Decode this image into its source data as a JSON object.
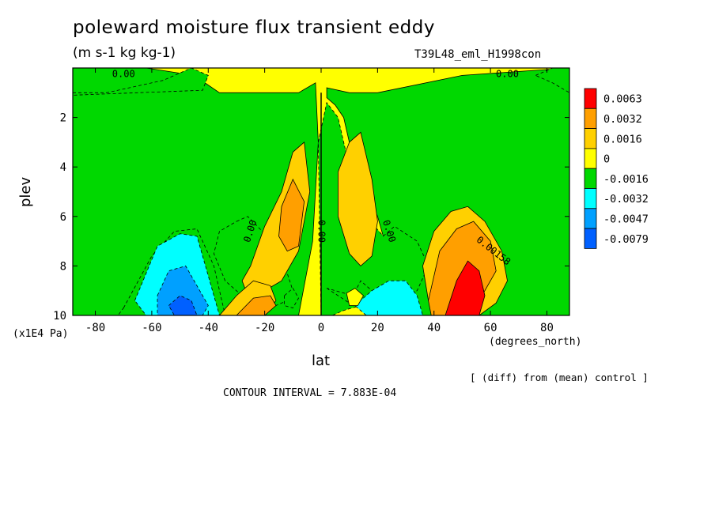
{
  "chart_data": {
    "type": "heatmap",
    "title": "poleward moisture flux transient eddy",
    "units_label": "(m s-1 kg kg-1)",
    "run_label": "T39L48_eml_H1998con",
    "xlabel": "lat",
    "x_unit": "(degrees_north)",
    "ylabel": "plev",
    "y_unit": "(x1E4 Pa)",
    "xlim": [
      -88,
      88
    ],
    "ylim": [
      10,
      0
    ],
    "x_ticks": [
      -80,
      -60,
      -40,
      -20,
      0,
      20,
      40,
      60,
      80
    ],
    "x_tick_labels": [
      "-80",
      "-60",
      "-40",
      "-20",
      "0",
      "20",
      "40",
      "60",
      "80"
    ],
    "y_ticks": [
      2,
      4,
      6,
      8,
      10
    ],
    "y_tick_labels": [
      "2",
      "4",
      "6",
      "8",
      "10"
    ],
    "legend": {
      "placement": "right",
      "bins": [
        {
          "label": "0.0063",
          "color": "#ff0000"
        },
        {
          "label": "0.0032",
          "color": "#ff9f00"
        },
        {
          "label": "0.0016",
          "color": "#ffd000"
        },
        {
          "label": "0",
          "color": "#ffff00"
        },
        {
          "label": "-0.0016",
          "color": "#00d800"
        },
        {
          "label": "-0.0032",
          "color": "#00ffff"
        },
        {
          "label": "-0.0047",
          "color": "#00a0ff"
        },
        {
          "label": "-0.0079",
          "color": "#0060ff"
        }
      ]
    },
    "contour_labels": [
      {
        "text": "0.00",
        "lat": -70,
        "plev": 0.0,
        "angle": 0
      },
      {
        "text": "0.00",
        "lat": 66,
        "plev": 0.0,
        "angle": 0
      },
      {
        "text": "0.00",
        "lat": -25,
        "plev": 6.6,
        "angle": -72
      },
      {
        "text": "0.00",
        "lat": 0,
        "plev": 6.6,
        "angle": 90
      },
      {
        "text": "0.00",
        "lat": 24,
        "plev": 6.6,
        "angle": 72
      },
      {
        "text": "0.00158",
        "lat": 61,
        "plev": 7.4,
        "angle": 38
      }
    ],
    "regions": [
      {
        "level": "0",
        "lat": [
          -88,
          -62,
          -45,
          -36,
          -25,
          -15,
          -8,
          -2,
          -1,
          -3,
          -8,
          -20,
          -40,
          -88
        ],
        "plev": [
          0.0,
          0.0,
          0.3,
          1.0,
          1.0,
          1.0,
          1.0,
          0.6,
          3.0,
          7.0,
          10,
          10,
          10,
          10
        ]
      },
      {
        "level": "0",
        "lat": [
          2,
          10,
          20,
          50,
          88,
          88,
          40,
          30,
          20,
          12,
          8,
          5,
          2
        ],
        "plev": [
          0.8,
          1.0,
          1.0,
          0.3,
          0.0,
          10,
          10,
          10,
          6,
          4,
          2,
          1.5,
          1.2
        ]
      },
      {
        "level": "-0.0016",
        "lat": [
          -88,
          -76,
          -56,
          -46,
          -40,
          -42,
          -88
        ],
        "plev": [
          1.0,
          1.0,
          0.5,
          0.0,
          0.3,
          0.9,
          1.1
        ]
      },
      {
        "level": "-0.0016",
        "lat": [
          -30,
          -26,
          -20,
          -16,
          -12,
          -10,
          -12,
          -16,
          -20,
          -24,
          -28,
          -34,
          -38,
          -36
        ],
        "plev": [
          6.2,
          6.0,
          6.7,
          7.6,
          8.3,
          9.0,
          9.4,
          9.6,
          9.6,
          9.5,
          9.2,
          8.6,
          7.5,
          6.6
        ]
      },
      {
        "level": "-0.0016",
        "lat": [
          -1,
          2,
          6,
          10,
          16,
          22,
          26,
          34,
          38,
          34,
          28,
          24,
          20,
          14,
          8,
          4,
          0
        ],
        "plev": [
          3.0,
          1.4,
          2.0,
          4.0,
          6.0,
          6.8,
          6.4,
          7.0,
          8.0,
          9.0,
          9.4,
          9.5,
          9.5,
          9.6,
          9.8,
          10,
          10
        ]
      },
      {
        "level": "-0.0016",
        "lat": [
          -70,
          -60,
          -52,
          -44,
          -38,
          -34,
          -38,
          -48,
          -62,
          -72
        ],
        "plev": [
          9.7,
          7.6,
          6.6,
          6.5,
          8.0,
          10,
          10,
          10,
          10,
          10
        ]
      },
      {
        "level": "-0.0016",
        "lat": [
          2,
          10,
          14,
          18,
          22,
          26,
          30,
          34,
          36,
          38,
          40,
          36
        ],
        "plev": [
          8.9,
          9.5,
          8.6,
          9.0,
          9.0,
          8.6,
          9.6,
          9.8,
          10,
          10,
          10,
          10
        ]
      },
      {
        "level": "-0.0016",
        "lat": [
          76,
          82,
          88,
          88,
          82
        ],
        "plev": [
          0.3,
          0.0,
          0.0,
          1.0,
          0.6
        ]
      },
      {
        "level": "-0.0032",
        "lat": [
          -66,
          -58,
          -50,
          -44,
          -40,
          -36,
          -38,
          -48,
          -62
        ],
        "plev": [
          9.4,
          7.2,
          6.7,
          6.8,
          8.4,
          10,
          10,
          10,
          10
        ]
      },
      {
        "level": "-0.0032",
        "lat": [
          12,
          18,
          24,
          30,
          34,
          36,
          38,
          30,
          22,
          16
        ],
        "plev": [
          9.6,
          9.0,
          8.6,
          8.6,
          9.2,
          10,
          10,
          10,
          10,
          10
        ]
      },
      {
        "level": "-0.0047",
        "lat": [
          -58,
          -54,
          -48,
          -44,
          -40,
          -42,
          -50,
          -58
        ],
        "plev": [
          9.2,
          8.2,
          8.0,
          8.8,
          9.6,
          10,
          10,
          10
        ]
      },
      {
        "level": "-0.0079",
        "lat": [
          -54,
          -50,
          -46,
          -44,
          -46,
          -52
        ],
        "plev": [
          9.6,
          9.2,
          9.4,
          10,
          10,
          10
        ]
      },
      {
        "level": "0.0016",
        "lat": [
          -25,
          -20,
          -14,
          -10,
          -6,
          -4,
          -8,
          -14,
          -20,
          -26,
          -28
        ],
        "plev": [
          8.0,
          6.4,
          5.0,
          3.4,
          3.0,
          5.0,
          7.4,
          8.6,
          9.0,
          9.2,
          8.6
        ]
      },
      {
        "level": "0.0016",
        "lat": [
          6,
          10,
          14,
          18,
          20,
          18,
          14,
          10,
          6
        ],
        "plev": [
          4.2,
          3.0,
          2.6,
          4.5,
          6.2,
          7.6,
          8.0,
          7.5,
          6.0
        ]
      },
      {
        "level": "0.0016",
        "lat": [
          36,
          40,
          46,
          52,
          58,
          64,
          66,
          62,
          56,
          50,
          44,
          40,
          38
        ],
        "plev": [
          8.0,
          6.6,
          5.8,
          5.6,
          6.2,
          7.4,
          8.6,
          9.5,
          10,
          10,
          10,
          10,
          9.4
        ]
      },
      {
        "level": "0.0016",
        "lat": [
          -36,
          -30,
          -24,
          -18,
          -16,
          -20,
          -28,
          -34
        ],
        "plev": [
          10,
          9.2,
          8.6,
          8.8,
          9.4,
          10,
          10,
          10
        ]
      },
      {
        "level": "0.0032",
        "lat": [
          -30,
          -24,
          -18,
          -16,
          -20,
          -28
        ],
        "plev": [
          10,
          9.3,
          9.2,
          9.6,
          10,
          10
        ]
      },
      {
        "level": "0.0032",
        "lat": [
          -14,
          -10,
          -6,
          -8,
          -12,
          -15
        ],
        "plev": [
          5.6,
          4.5,
          5.4,
          7.2,
          7.4,
          6.8
        ]
      },
      {
        "level": "0.0032",
        "lat": [
          38,
          42,
          48,
          54,
          60,
          62,
          58,
          52,
          46,
          42,
          39
        ],
        "plev": [
          9.4,
          7.4,
          6.5,
          6.2,
          7.0,
          8.2,
          9.0,
          10,
          10,
          10,
          10
        ]
      },
      {
        "level": "0.0063",
        "lat": [
          44,
          48,
          52,
          56,
          58,
          56,
          50,
          46
        ],
        "plev": [
          10,
          8.6,
          7.8,
          8.2,
          9.2,
          10,
          10,
          10
        ]
      },
      {
        "level": "-0.0016",
        "lat": [
          -13,
          -10,
          -8,
          -10,
          -13
        ],
        "plev": [
          9.2,
          8.9,
          9.3,
          9.7,
          9.6
        ]
      },
      {
        "level": "0",
        "lat": [
          9,
          12,
          15,
          13,
          10
        ],
        "plev": [
          9.1,
          8.9,
          9.2,
          9.6,
          9.6
        ]
      }
    ]
  },
  "footer": {
    "diff_note": "[ (diff) from (mean) control ]",
    "contour_interval": "CONTOUR INTERVAL = 7.883E-04"
  }
}
